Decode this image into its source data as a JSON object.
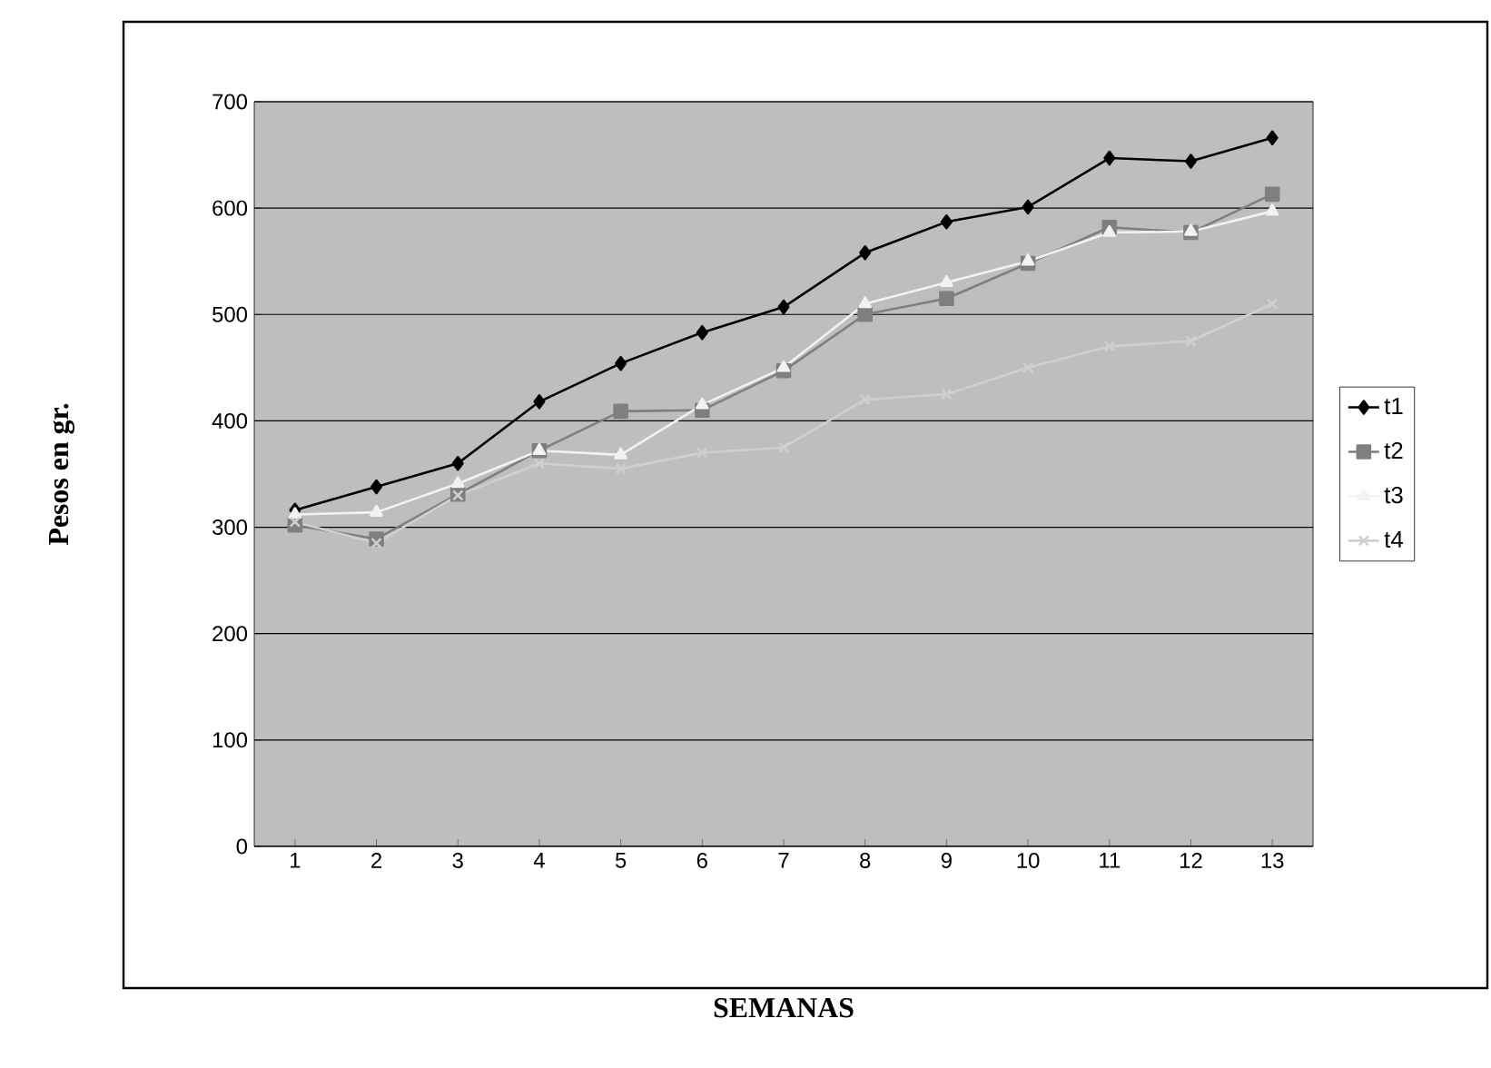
{
  "chart_data": {
    "type": "line",
    "xlabel": "SEMANAS",
    "ylabel": "Pesos en gr.",
    "categories": [
      "1",
      "2",
      "3",
      "4",
      "5",
      "6",
      "7",
      "8",
      "9",
      "10",
      "11",
      "12",
      "13"
    ],
    "series": [
      {
        "name": "t1",
        "color": "#000000",
        "marker": "diamond",
        "values": [
          316,
          338,
          360,
          418,
          454,
          483,
          507,
          558,
          587,
          601,
          647,
          644,
          666
        ]
      },
      {
        "name": "t2",
        "color": "#7f7f7f",
        "marker": "square",
        "values": [
          302,
          289,
          331,
          372,
          409,
          410,
          447,
          500,
          515,
          548,
          582,
          577,
          613
        ]
      },
      {
        "name": "t3",
        "color": "#f2f2f2",
        "marker": "triangle",
        "values": [
          312,
          314,
          341,
          372,
          368,
          415,
          450,
          510,
          530,
          550,
          577,
          578,
          597
        ]
      },
      {
        "name": "t4",
        "color": "#cfcfcf",
        "marker": "cross",
        "values": [
          305,
          285,
          330,
          360,
          355,
          370,
          375,
          420,
          425,
          450,
          470,
          475,
          510
        ]
      }
    ],
    "ylim": [
      0,
      700
    ],
    "yticks": [
      0,
      100,
      200,
      300,
      400,
      500,
      600,
      700
    ],
    "grid": "y",
    "legend": "right",
    "line_style": "solid"
  }
}
